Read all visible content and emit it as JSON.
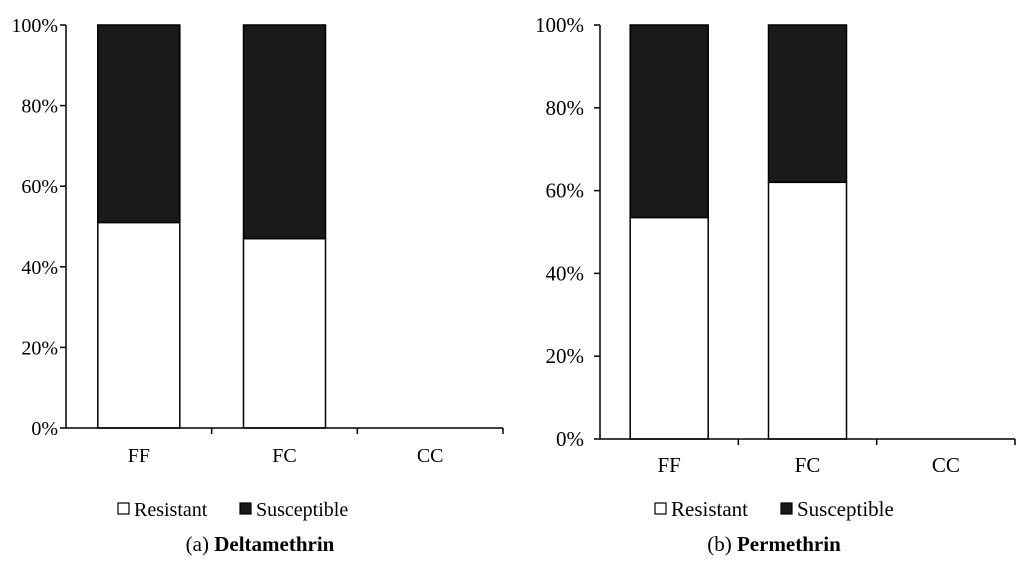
{
  "chart_data": [
    {
      "type": "bar",
      "stacked": true,
      "percent": true,
      "panel_label": "(a)",
      "title": "Deltamethrin",
      "categories": [
        "FF",
        "FC",
        "CC"
      ],
      "series": [
        {
          "name": "Resistant",
          "values": [
            51,
            47,
            null
          ]
        },
        {
          "name": "Susceptible",
          "values": [
            49,
            53,
            null
          ]
        }
      ],
      "ylim": [
        0,
        100
      ],
      "yticks": [
        "0%",
        "20%",
        "40%",
        "60%",
        "80%",
        "100%"
      ],
      "legend_position": "bottom",
      "grid": false
    },
    {
      "type": "bar",
      "stacked": true,
      "percent": true,
      "panel_label": "(b)",
      "title": "Permethrin",
      "categories": [
        "FF",
        "FC",
        "CC"
      ],
      "series": [
        {
          "name": "Resistant",
          "values": [
            53.5,
            62,
            null
          ]
        },
        {
          "name": "Susceptible",
          "values": [
            46.5,
            38,
            null
          ]
        }
      ],
      "ylim": [
        0,
        100
      ],
      "yticks": [
        "0%",
        "20%",
        "40%",
        "60%",
        "80%",
        "100%"
      ],
      "legend_position": "bottom",
      "grid": false
    }
  ],
  "colors": {
    "Resistant": "#ffffff",
    "Susceptible": "#1a1a1a",
    "axis": "#000000"
  }
}
